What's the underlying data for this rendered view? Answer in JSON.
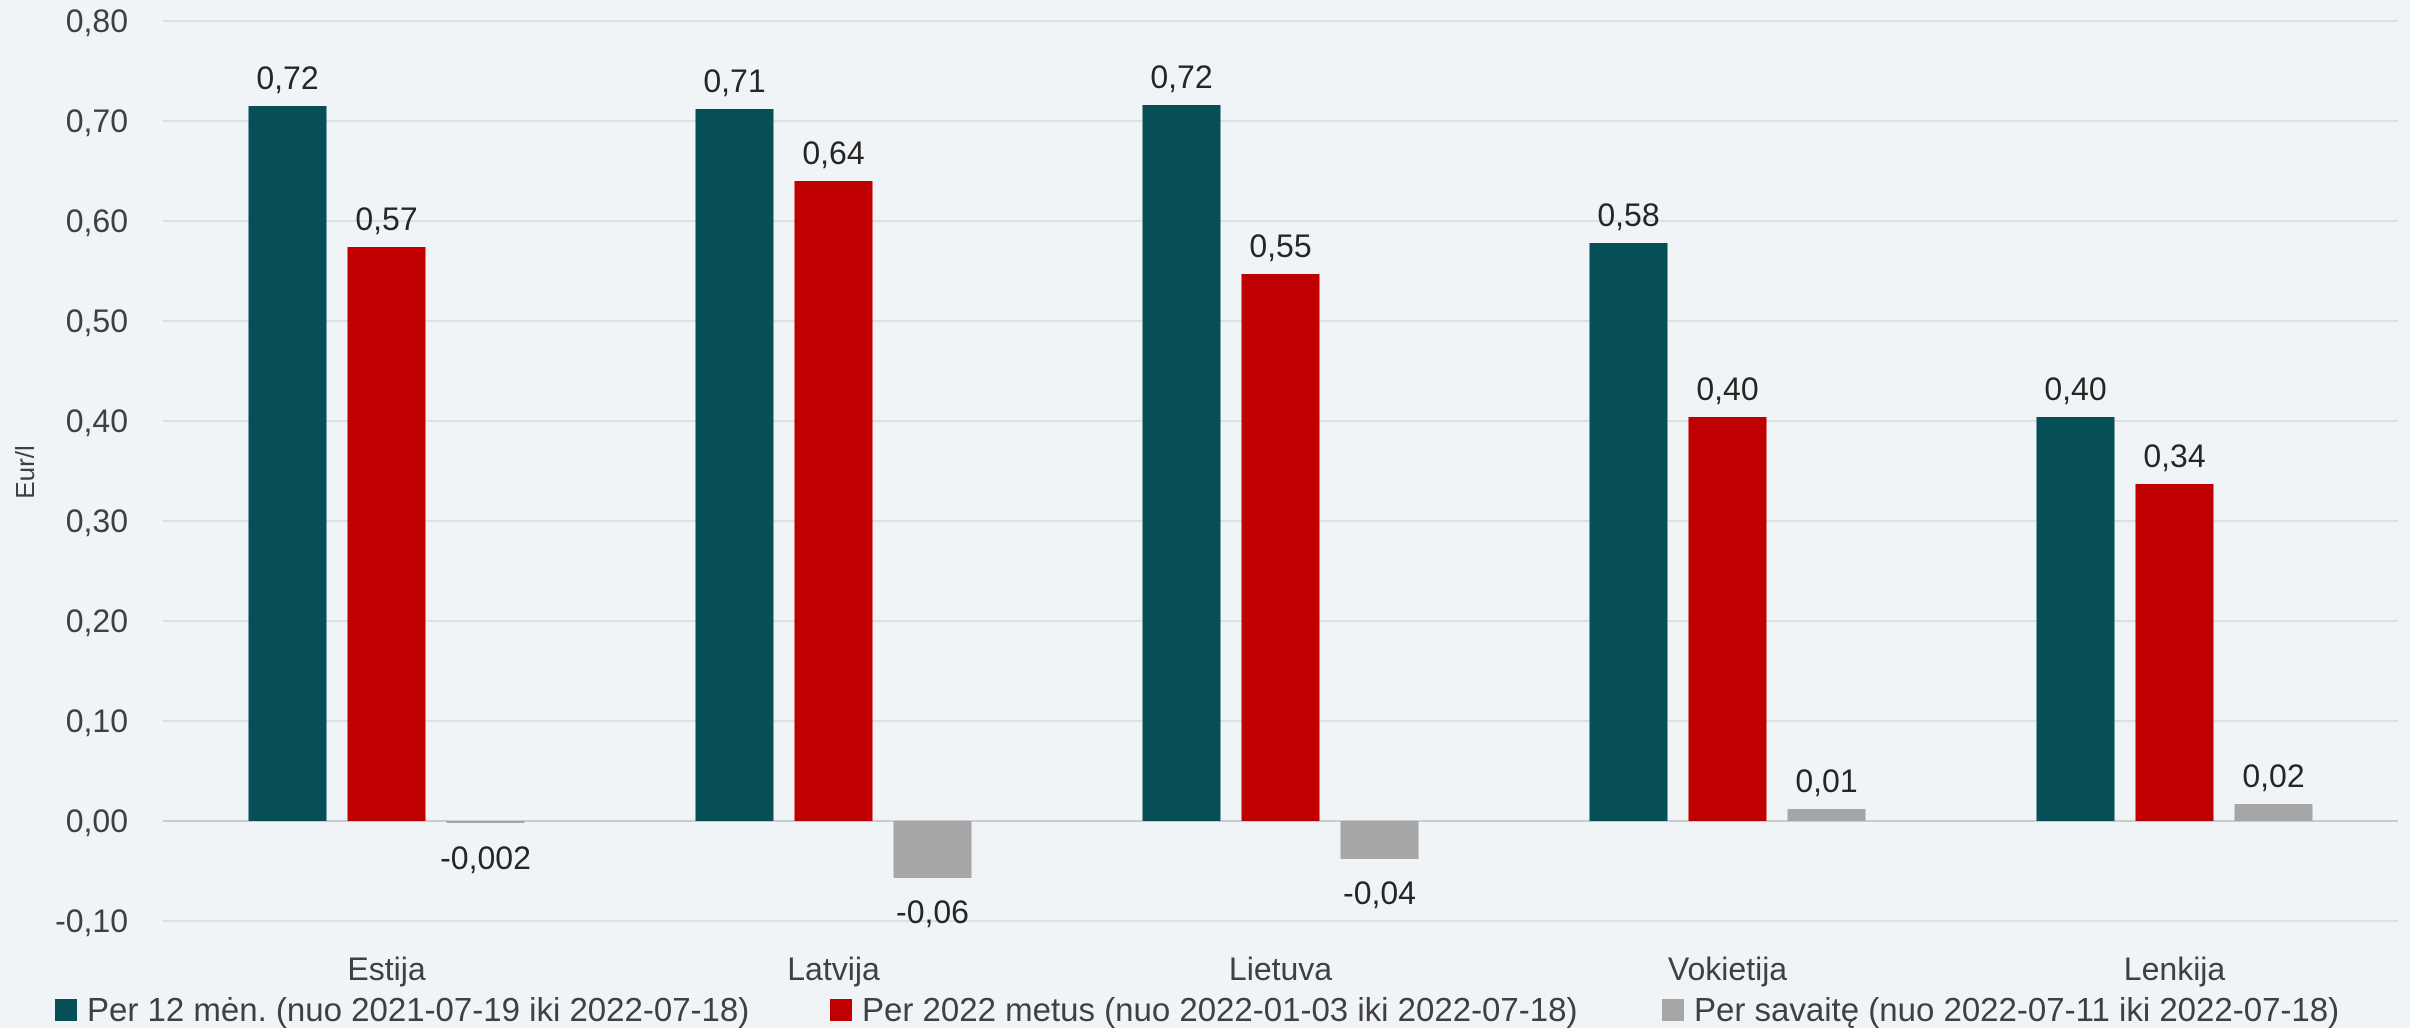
{
  "chart_data": {
    "type": "bar",
    "ylabel": "Eur/l",
    "ylim": [
      -0.1,
      0.8
    ],
    "yticks": [
      "-0,10",
      "0,00",
      "0,10",
      "0,20",
      "0,30",
      "0,40",
      "0,50",
      "0,60",
      "0,70",
      "0,80"
    ],
    "categories": [
      "Estija",
      "Latvija",
      "Lietuva",
      "Vokietija",
      "Lenkija"
    ],
    "grid": true,
    "legend_position": "bottom",
    "series": [
      {
        "name": "Per 12 mėn. (nuo 2021-07-19 iki 2022-07-18)",
        "color": "#074f57",
        "values": [
          0.715,
          0.712,
          0.716,
          0.578,
          0.404
        ],
        "labels": [
          "0,72",
          "0,71",
          "0,72",
          "0,58",
          "0,40"
        ]
      },
      {
        "name": "Per 2022 metus (nuo 2022-01-03 iki 2022-07-18)",
        "color": "#c00000",
        "values": [
          0.574,
          0.64,
          0.547,
          0.404,
          0.337
        ],
        "labels": [
          "0,57",
          "0,64",
          "0,55",
          "0,40",
          "0,34"
        ]
      },
      {
        "name": "Per savaitę (nuo 2022-07-11 iki 2022-07-18)",
        "color": "#a6a6a6",
        "values": [
          -0.002,
          -0.057,
          -0.038,
          0.012,
          0.017
        ],
        "labels": [
          "-0,002",
          "-0,06",
          "-0,04",
          "0,01",
          "0,02"
        ]
      }
    ]
  }
}
